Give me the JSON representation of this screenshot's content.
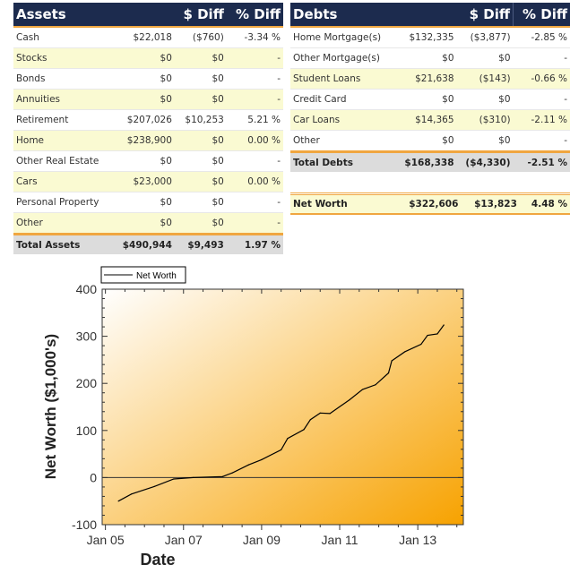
{
  "assets": {
    "headers": [
      "Assets",
      "$ Diff",
      "% Diff"
    ],
    "rows": [
      {
        "label": "Cash",
        "value": "$22,018",
        "diff": "($760)",
        "pct": "-3.34 %"
      },
      {
        "label": "Stocks",
        "value": "$0",
        "diff": "$0",
        "pct": "-"
      },
      {
        "label": "Bonds",
        "value": "$0",
        "diff": "$0",
        "pct": "-"
      },
      {
        "label": "Annuities",
        "value": "$0",
        "diff": "$0",
        "pct": "-"
      },
      {
        "label": "Retirement",
        "value": "$207,026",
        "diff": "$10,253",
        "pct": "5.21 %"
      },
      {
        "label": "Home",
        "value": "$238,900",
        "diff": "$0",
        "pct": "0.00 %"
      },
      {
        "label": "Other Real Estate",
        "value": "$0",
        "diff": "$0",
        "pct": "-"
      },
      {
        "label": "Cars",
        "value": "$23,000",
        "diff": "$0",
        "pct": "0.00 %"
      },
      {
        "label": "Personal Property",
        "value": "$0",
        "diff": "$0",
        "pct": "-"
      },
      {
        "label": "Other",
        "value": "$0",
        "diff": "$0",
        "pct": "-"
      }
    ],
    "total": {
      "label": "Total Assets",
      "value": "$490,944",
      "diff": "$9,493",
      "pct": "1.97 %"
    }
  },
  "debts": {
    "headers": [
      "Debts",
      "$ Diff",
      "% Diff"
    ],
    "rows": [
      {
        "label": "Home Mortgage(s)",
        "value": "$132,335",
        "diff": "($3,877)",
        "pct": "-2.85 %"
      },
      {
        "label": "Other Mortgage(s)",
        "value": "$0",
        "diff": "$0",
        "pct": "-"
      },
      {
        "label": "Student Loans",
        "value": "$21,638",
        "diff": "($143)",
        "pct": "-0.66 %"
      },
      {
        "label": "Credit Card",
        "value": "$0",
        "diff": "$0",
        "pct": "-"
      },
      {
        "label": "Car Loans",
        "value": "$14,365",
        "diff": "($310)",
        "pct": "-2.11 %"
      },
      {
        "label": "Other",
        "value": "$0",
        "diff": "$0",
        "pct": "-"
      }
    ],
    "total": {
      "label": "Total Debts",
      "value": "$168,338",
      "diff": "($4,330)",
      "pct": "-2.51 %"
    }
  },
  "net_worth": {
    "label": "Net Worth",
    "value": "$322,606",
    "diff": "$13,823",
    "pct": "4.48 %"
  },
  "colors": {
    "header_bg": "#1c2b4e",
    "accent": "#f0a640",
    "alt_row": "#fafad2",
    "plot_gradient": [
      "#ffffff",
      "#f7a200"
    ],
    "line": "#000000"
  },
  "chart_data": {
    "type": "line",
    "xlabel": "Date",
    "ylabel": "Net Worth ($1,000's)",
    "xlim": [
      "2004-12",
      "2014-03"
    ],
    "ylim": [
      -100,
      400
    ],
    "xticks": [
      "Jan 05",
      "Jan 07",
      "Jan 09",
      "Jan 11",
      "Jan 13"
    ],
    "xtick_dates": [
      "2005-01",
      "2007-01",
      "2009-01",
      "2011-01",
      "2013-01"
    ],
    "yticks": [
      -100,
      0,
      100,
      200,
      300,
      400
    ],
    "legend": "top-left",
    "grid": false,
    "series": [
      {
        "name": "Net Worth",
        "points": [
          [
            "2005-05",
            -50
          ],
          [
            "2005-09",
            -35
          ],
          [
            "2006-04",
            -19
          ],
          [
            "2006-10",
            -3
          ],
          [
            "2007-04",
            0
          ],
          [
            "2008-01",
            2
          ],
          [
            "2008-04",
            10
          ],
          [
            "2008-09",
            27
          ],
          [
            "2009-01",
            38
          ],
          [
            "2009-07",
            59
          ],
          [
            "2009-09",
            83
          ],
          [
            "2010-02",
            102
          ],
          [
            "2010-04",
            123
          ],
          [
            "2010-07",
            137
          ],
          [
            "2010-10",
            136
          ],
          [
            "2011-04",
            165
          ],
          [
            "2011-08",
            187
          ],
          [
            "2011-12",
            197
          ],
          [
            "2012-04",
            222
          ],
          [
            "2012-05",
            248
          ],
          [
            "2012-09",
            267
          ],
          [
            "2013-02",
            283
          ],
          [
            "2013-04",
            302
          ],
          [
            "2013-07",
            305
          ],
          [
            "2013-09",
            324
          ]
        ]
      }
    ]
  }
}
